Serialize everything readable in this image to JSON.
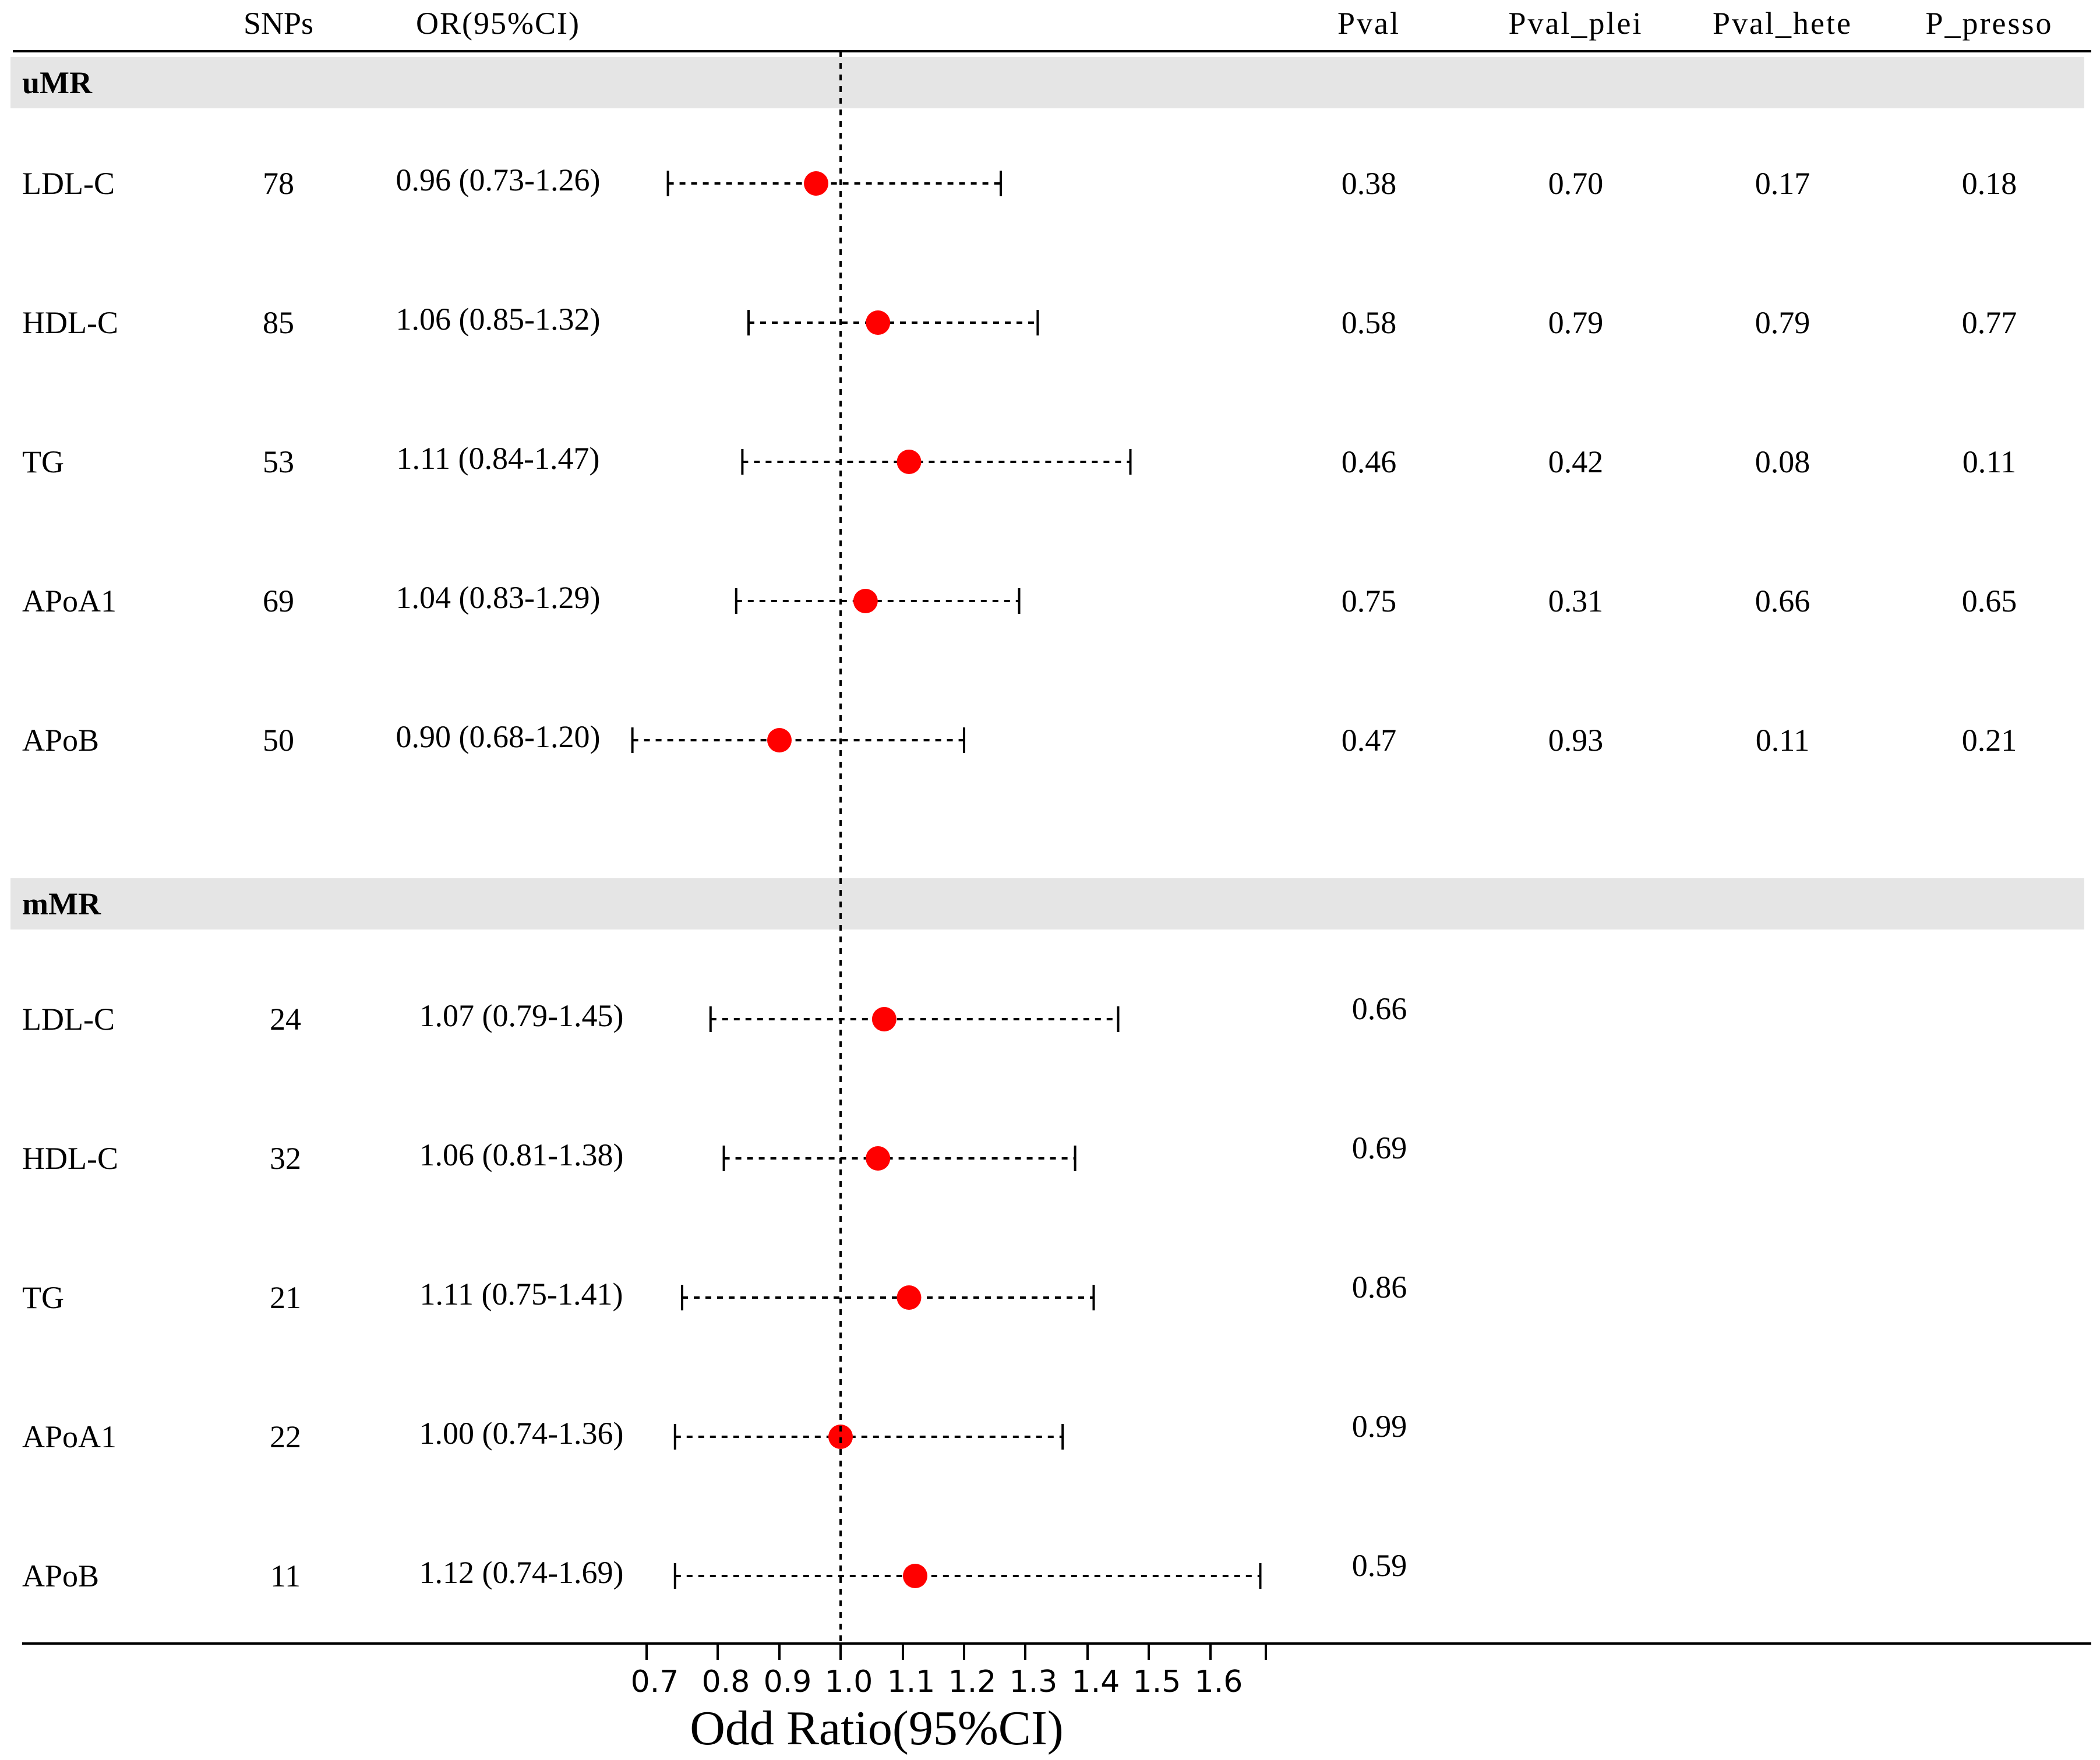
{
  "chart_data": {
    "type": "forest",
    "columns": {
      "snps": "SNPs",
      "or_ci": "OR(95%CI)",
      "pval": "Pval",
      "pval_plei": "Pval_plei",
      "pval_hete": "Pval_hete",
      "p_presso": "P_presso"
    },
    "groups": [
      {
        "name": "uMR",
        "rows": [
          {
            "label": "LDL-C",
            "snps": "78",
            "or_text": "0.96 (0.73-1.26)",
            "or": 0.96,
            "lo": 0.73,
            "hi": 1.26,
            "pval": "0.38",
            "pval_plei": "0.70",
            "pval_hete": "0.17",
            "p_presso": "0.18"
          },
          {
            "label": "HDL-C",
            "snps": "85",
            "or_text": "1.06 (0.85-1.32)",
            "or": 1.06,
            "lo": 0.85,
            "hi": 1.32,
            "pval": "0.58",
            "pval_plei": "0.79",
            "pval_hete": "0.79",
            "p_presso": "0.77"
          },
          {
            "label": "TG",
            "snps": "53",
            "or_text": "1.11 (0.84-1.47)",
            "or": 1.11,
            "lo": 0.84,
            "hi": 1.47,
            "pval": "0.46",
            "pval_plei": "0.42",
            "pval_hete": "0.08",
            "p_presso": "0.11"
          },
          {
            "label": "APoA1",
            "snps": "69",
            "or_text": "1.04 (0.83-1.29)",
            "or": 1.04,
            "lo": 0.83,
            "hi": 1.29,
            "pval": "0.75",
            "pval_plei": "0.31",
            "pval_hete": "0.66",
            "p_presso": "0.65"
          },
          {
            "label": "APoB",
            "snps": "50",
            "or_text": "0.90 (0.68-1.20)",
            "or": 0.9,
            "lo": 0.68,
            "hi": 1.2,
            "pval": "0.47",
            "pval_plei": "0.93",
            "pval_hete": "0.11",
            "p_presso": "0.21"
          }
        ]
      },
      {
        "name": "mMR",
        "rows": [
          {
            "label": "LDL-C",
            "snps": "24",
            "or_text": "1.07 (0.79-1.45)",
            "or": 1.07,
            "lo": 0.79,
            "hi": 1.45,
            "pval": "0.66"
          },
          {
            "label": "HDL-C",
            "snps": "32",
            "or_text": "1.06 (0.81-1.38)",
            "or": 1.06,
            "lo": 0.81,
            "hi": 1.38,
            "pval": "0.69"
          },
          {
            "label": "TG",
            "snps": "21",
            "or_text": "1.11 (0.75-1.41)",
            "or": 1.11,
            "lo": 0.75,
            "hi": 1.41,
            "pval": "0.86"
          },
          {
            "label": "APoA1",
            "snps": "22",
            "or_text": "1.00 (0.74-1.36)",
            "or": 1.0,
            "lo": 0.74,
            "hi": 1.36,
            "pval": "0.99"
          },
          {
            "label": "APoB",
            "snps": "11",
            "or_text": "1.12 (0.74-1.69)",
            "or": 1.12,
            "lo": 0.74,
            "hi": 1.69,
            "pval": "0.59"
          }
        ]
      }
    ],
    "x_ticks": [
      "0.7",
      "0.8",
      "0.9",
      "1.0",
      "1.1",
      "1.2",
      "1.3",
      "1.4",
      "1.5",
      "1.6"
    ],
    "xlabel": "Odd Ratio(95%CI)",
    "xlim": [
      0.68,
      1.69
    ],
    "reference_line": 1.0,
    "point_color": "#ff0000",
    "band_color": "#e5e5e5"
  }
}
